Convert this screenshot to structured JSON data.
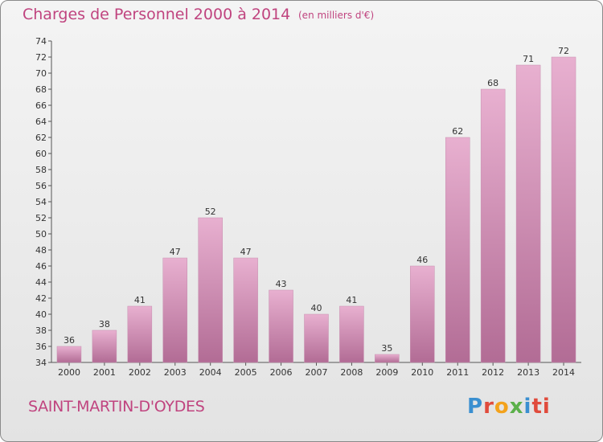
{
  "header": {
    "title": "Charges de Personnel 2000 à 2014",
    "subtitle": "(en milliers d'€)"
  },
  "footer": {
    "commune": "SAINT-MARTIN-D'OYDES",
    "logo_letters": [
      "P",
      "r",
      "o",
      "x",
      "i",
      "ti"
    ]
  },
  "colors": {
    "bar_light": "#e8b0d0",
    "bar_dark": "#b26c95",
    "text": "#c0447f"
  },
  "chart_data": {
    "type": "bar",
    "categories": [
      "2000",
      "2001",
      "2002",
      "2003",
      "2004",
      "2005",
      "2006",
      "2007",
      "2008",
      "2009",
      "2010",
      "2011",
      "2012",
      "2013",
      "2014"
    ],
    "values": [
      36,
      38,
      41,
      47,
      52,
      47,
      43,
      40,
      41,
      35,
      46,
      62,
      68,
      71,
      72
    ],
    "title": "Charges de Personnel 2000 à 2014",
    "subtitle": "(en milliers d'€)",
    "ylim": [
      34,
      74
    ],
    "yticks": [
      34,
      36,
      38,
      40,
      42,
      44,
      46,
      48,
      50,
      52,
      54,
      56,
      58,
      60,
      62,
      64,
      66,
      68,
      70,
      72,
      74
    ],
    "grid": false,
    "data_labels": true
  }
}
